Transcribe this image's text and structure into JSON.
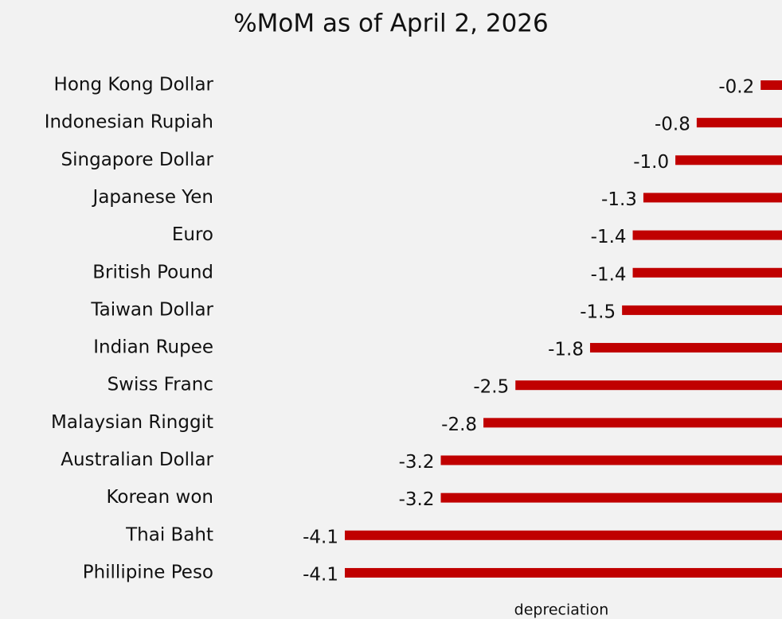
{
  "chart_data": {
    "type": "bar",
    "orientation": "horizontal",
    "title": "%MoM as of April 2, 2026",
    "categories": [
      "Hong Kong Dollar",
      "Indonesian Rupiah",
      "Singapore Dollar",
      "Japanese Yen",
      "Euro",
      "British Pound",
      "Taiwan Dollar",
      "Indian Rupee",
      "Swiss Franc",
      "Malaysian Ringgit",
      "Australian Dollar",
      "Korean won",
      "Thai Baht",
      "Phillipine Peso"
    ],
    "values": [
      -0.2,
      -0.8,
      -1.0,
      -1.3,
      -1.4,
      -1.4,
      -1.5,
      -1.8,
      -2.5,
      -2.8,
      -3.2,
      -3.2,
      -4.1,
      -4.1
    ],
    "value_labels": [
      "-0.2",
      "-0.8",
      "-1.0",
      "-1.3",
      "-1.4",
      "-1.4",
      "-1.5",
      "-1.8",
      "-2.5",
      "-2.8",
      "-3.2",
      "-3.2",
      "-4.1",
      "-4.1"
    ],
    "color": "#c00000",
    "annotation": "depreciation"
  }
}
